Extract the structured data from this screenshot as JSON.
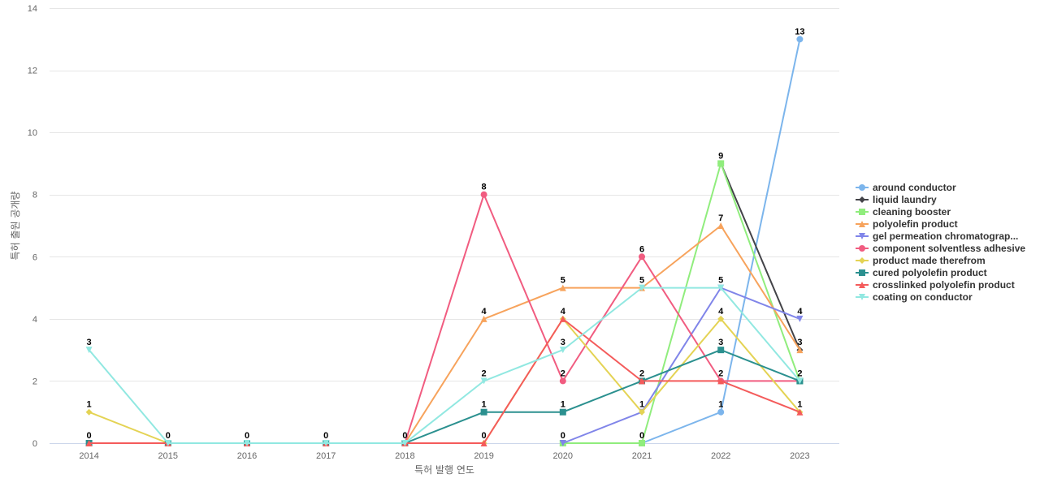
{
  "chart_data": {
    "type": "line",
    "title": "",
    "xlabel": "특허 발행 연도",
    "ylabel": "특허 출원 공개량",
    "x": [
      2014,
      2015,
      2016,
      2017,
      2018,
      2019,
      2020,
      2021,
      2022,
      2023
    ],
    "x_tick_labels": [
      "2014",
      "2015",
      "2016",
      "2017",
      "2018",
      "2019",
      "2020",
      "2021",
      "2022",
      "2023"
    ],
    "ylim": [
      0,
      14
    ],
    "y_ticks": [
      0,
      2,
      4,
      6,
      8,
      10,
      12,
      14
    ],
    "y_tick_labels": [
      "0",
      "2",
      "4",
      "6",
      "8",
      "10",
      "12",
      "14"
    ],
    "grid": "horizontal",
    "legend_position": "right",
    "series": [
      {
        "name": "around conductor",
        "color": "#7cb5ec",
        "marker": "circle",
        "values": [
          null,
          null,
          null,
          null,
          null,
          null,
          null,
          0,
          1,
          13
        ]
      },
      {
        "name": "liquid laundry",
        "color": "#434348",
        "marker": "diamond",
        "values": [
          null,
          null,
          null,
          null,
          null,
          null,
          null,
          null,
          9,
          3
        ]
      },
      {
        "name": "cleaning booster",
        "color": "#90ed7d",
        "marker": "square",
        "values": [
          null,
          null,
          null,
          null,
          null,
          null,
          0,
          0,
          9,
          2
        ]
      },
      {
        "name": "polyolefin product",
        "color": "#f7a35c",
        "marker": "triangle",
        "values": [
          null,
          null,
          null,
          null,
          0,
          4,
          5,
          5,
          7,
          3
        ]
      },
      {
        "name": "gel permeation chromatograp...",
        "color": "#8085e9",
        "marker": "triangle-down",
        "values": [
          null,
          null,
          null,
          null,
          null,
          null,
          0,
          1,
          5,
          4
        ]
      },
      {
        "name": "component solventless adhesive",
        "color": "#f15c80",
        "marker": "circle",
        "values": [
          null,
          null,
          null,
          null,
          0,
          8,
          2,
          6,
          2,
          2
        ]
      },
      {
        "name": "product made therefrom",
        "color": "#e4d354",
        "marker": "diamond",
        "values": [
          1,
          0,
          null,
          null,
          null,
          0,
          4,
          1,
          4,
          1
        ]
      },
      {
        "name": "cured polyolefin product",
        "color": "#2b908f",
        "marker": "square",
        "values": [
          0,
          0,
          0,
          0,
          0,
          1,
          1,
          2,
          3,
          2
        ]
      },
      {
        "name": "crosslinked polyolefin product",
        "color": "#f45b5b",
        "marker": "triangle",
        "values": [
          0,
          0,
          0,
          0,
          0,
          0,
          4,
          2,
          2,
          1
        ]
      },
      {
        "name": "coating on conductor",
        "color": "#91e8e1",
        "marker": "triangle-down",
        "values": [
          3,
          0,
          0,
          0,
          0,
          2,
          3,
          5,
          5,
          2
        ]
      }
    ],
    "data_labels": [
      {
        "x": 2014,
        "y": 3,
        "text": "3"
      },
      {
        "x": 2014,
        "y": 1,
        "text": "1"
      },
      {
        "x": 2014,
        "y": 0,
        "text": "0"
      },
      {
        "x": 2015,
        "y": 0,
        "text": "0"
      },
      {
        "x": 2016,
        "y": 0,
        "text": "0"
      },
      {
        "x": 2017,
        "y": 0,
        "text": "0"
      },
      {
        "x": 2018,
        "y": 0,
        "text": "0"
      },
      {
        "x": 2019,
        "y": 8,
        "text": "8"
      },
      {
        "x": 2019,
        "y": 4,
        "text": "4"
      },
      {
        "x": 2019,
        "y": 2,
        "text": "2"
      },
      {
        "x": 2019,
        "y": 1,
        "text": "1"
      },
      {
        "x": 2019,
        "y": 0,
        "text": "0"
      },
      {
        "x": 2020,
        "y": 5,
        "text": "5"
      },
      {
        "x": 2020,
        "y": 4,
        "text": "4"
      },
      {
        "x": 2020,
        "y": 3,
        "text": "3"
      },
      {
        "x": 2020,
        "y": 2,
        "text": "2"
      },
      {
        "x": 2020,
        "y": 1,
        "text": "1"
      },
      {
        "x": 2020,
        "y": 0,
        "text": "0"
      },
      {
        "x": 2021,
        "y": 6,
        "text": "6"
      },
      {
        "x": 2021,
        "y": 5,
        "text": "5"
      },
      {
        "x": 2021,
        "y": 2,
        "text": "2"
      },
      {
        "x": 2021,
        "y": 1,
        "text": "1"
      },
      {
        "x": 2021,
        "y": 0,
        "text": "0"
      },
      {
        "x": 2022,
        "y": 9,
        "text": "9"
      },
      {
        "x": 2022,
        "y": 7,
        "text": "7"
      },
      {
        "x": 2022,
        "y": 5,
        "text": "5"
      },
      {
        "x": 2022,
        "y": 4,
        "text": "4"
      },
      {
        "x": 2022,
        "y": 3,
        "text": "3"
      },
      {
        "x": 2022,
        "y": 2,
        "text": "2"
      },
      {
        "x": 2022,
        "y": 1,
        "text": "1"
      },
      {
        "x": 2023,
        "y": 13,
        "text": "13"
      },
      {
        "x": 2023,
        "y": 4,
        "text": "4"
      },
      {
        "x": 2023,
        "y": 3,
        "text": "3"
      },
      {
        "x": 2023,
        "y": 2,
        "text": "2"
      },
      {
        "x": 2023,
        "y": 1,
        "text": "1"
      }
    ]
  }
}
